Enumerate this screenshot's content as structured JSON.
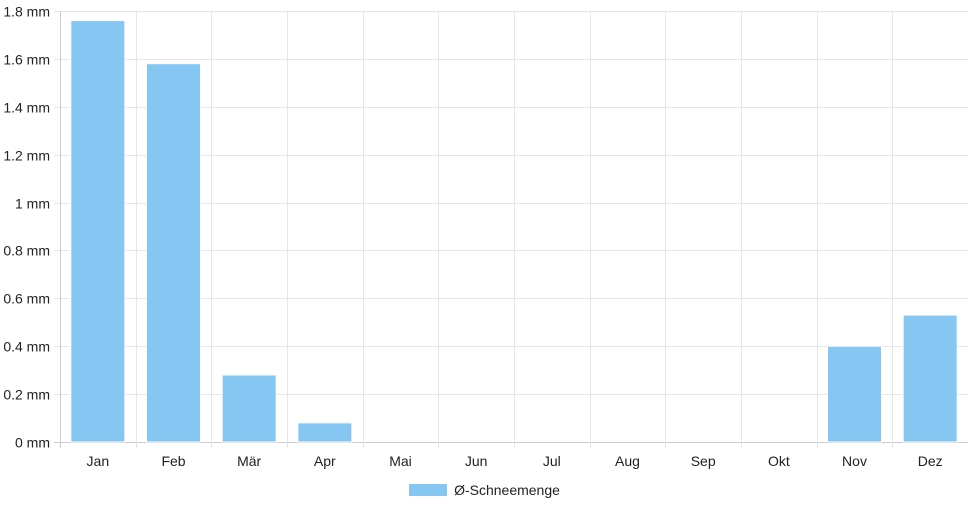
{
  "chart_data": {
    "type": "bar",
    "categories": [
      "Jan",
      "Feb",
      "Mär",
      "Apr",
      "Mai",
      "Jun",
      "Jul",
      "Aug",
      "Sep",
      "Okt",
      "Nov",
      "Dez"
    ],
    "series": [
      {
        "name": "Ø-Schneemenge",
        "values": [
          1.76,
          1.58,
          0.28,
          0.08,
          0,
          0,
          0,
          0,
          0,
          0,
          0.4,
          0.53
        ],
        "color": "#86c6f2"
      }
    ],
    "yticks": [
      "0 mm",
      "0.2 mm",
      "0.4 mm",
      "0.6 mm",
      "0.8 mm",
      "1 mm",
      "1.2 mm",
      "1.4 mm",
      "1.6 mm",
      "1.8 mm"
    ],
    "ylim": [
      0,
      1.8
    ],
    "grid": true,
    "legend_position": "bottom"
  }
}
